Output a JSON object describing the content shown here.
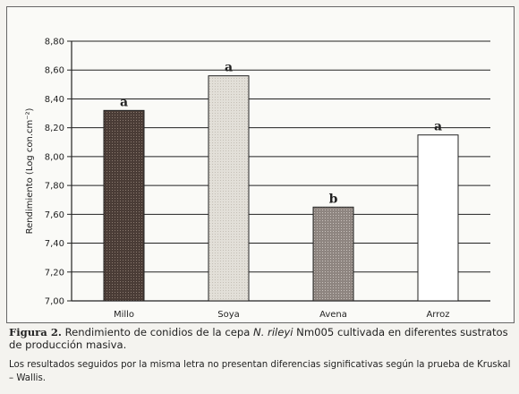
{
  "chart_data": {
    "type": "bar",
    "categories": [
      "Millo",
      "Soya",
      "Avena",
      "Arroz"
    ],
    "values": [
      8.32,
      8.56,
      7.65,
      8.15
    ],
    "significance_letters": [
      "a",
      "a",
      "b",
      "a"
    ],
    "bar_colors": [
      "#4a3c36",
      "#e2dfd8",
      "#8e8580",
      "#ffffff"
    ],
    "ylabel": "Rendimiento (Log con.cm⁻²)",
    "ylim": [
      7.0,
      8.8
    ],
    "yticks": [
      "7,00",
      "7,20",
      "7,40",
      "7,60",
      "7,80",
      "8,00",
      "8,20",
      "8,40",
      "8,60",
      "8,80"
    ],
    "grid": true
  },
  "caption": {
    "label": "Figura 2.",
    "text_before": "Rendimiento de conidios de la cepa",
    "organism": "N. rileyi",
    "text_after": "Nm005 cultivada en diferentes sustratos de producción masiva.",
    "note": "Los resultados seguidos por la misma letra no presentan diferencias significativas según la prueba de Kruskal – Wallis."
  }
}
